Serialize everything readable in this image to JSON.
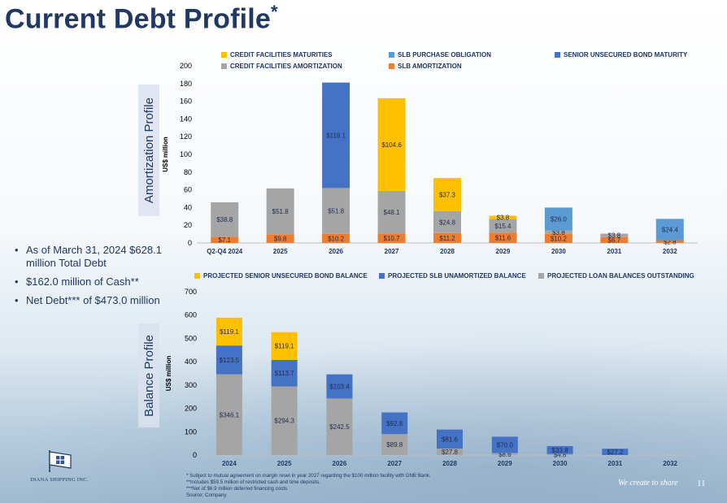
{
  "header": {
    "title": "Current Debt Profile",
    "title_mark": "*"
  },
  "bullets": [
    "As of March 31, 2024 $628.1 million Total Debt",
    "$162.0 million of Cash**",
    "Net Debt*** of $473.0 million"
  ],
  "logo": {
    "name": "DIANA SHIPPING INC."
  },
  "footer": {
    "notes": [
      "* Subject to mutual agreement on margin reset in year 2027 regarding the $100 million facility with DNB Bank.",
      "**Includes $59.5 million of restricted cash and time deposits.",
      "***Net of $6.9 million deferred financing costs",
      "Source: Company"
    ],
    "tagline": "We create to share",
    "page": "11"
  },
  "chart_data": [
    {
      "type": "bar",
      "stacked": true,
      "title": "Amortization Profile",
      "ylabel": "US$ million",
      "ylim": [
        0,
        200
      ],
      "yticks": [
        "0",
        "20",
        "40",
        "60",
        "80",
        "100",
        "120",
        "140",
        "160",
        "180",
        "200"
      ],
      "categories": [
        "Q2-Q4 2024",
        "2025",
        "2026",
        "2027",
        "2028",
        "2029",
        "2030",
        "2031",
        "2032"
      ],
      "series": [
        {
          "name": "SLB AMORTIZATION",
          "color": "#ed7d31",
          "values": [
            7.1,
            9.8,
            10.2,
            10.7,
            11.2,
            11.6,
            10.2,
            6.7,
            2.8
          ],
          "labels": [
            "$7.1",
            "$9.8",
            "$10.2",
            "$10.7",
            "$11.2",
            "$11.6",
            "$10.2",
            "$6.7",
            "$2.8"
          ]
        },
        {
          "name": "CREDIT FACILITIES AMORTIZATION",
          "color": "#a5a5a5",
          "values": [
            38.8,
            51.8,
            51.8,
            48.1,
            24.8,
            15.4,
            3.8,
            3.8,
            0
          ],
          "labels": [
            "$38.8",
            "$51.8",
            "$51.8",
            "$48.1",
            "$24.8",
            "$15.4",
            "$3.8",
            "$3.8",
            ""
          ]
        },
        {
          "name": "CREDIT FACILITIES MATURITIES",
          "color": "#ffc000",
          "values": [
            0,
            0,
            0,
            104.6,
            37.3,
            3.8,
            0,
            0,
            0
          ],
          "labels": [
            "",
            "",
            "",
            "$104.6",
            "$37.3",
            "$3.8",
            "",
            "",
            ""
          ]
        },
        {
          "name": "SLB PURCHASE OBLIGATION",
          "color": "#5b9bd5",
          "values": [
            0,
            0,
            0,
            0,
            0,
            0,
            26.0,
            0,
            24.4
          ],
          "labels": [
            "",
            "",
            "",
            "",
            "",
            "",
            "$26.0",
            "",
            "$24.4"
          ]
        },
        {
          "name": "SENIOR UNSECURED BOND MATURITY",
          "color": "#4472c4",
          "values": [
            0,
            0,
            119.1,
            0,
            0,
            0,
            0,
            0,
            0
          ],
          "labels": [
            "",
            "",
            "$119.1",
            "",
            "",
            "",
            "",
            "",
            ""
          ]
        }
      ],
      "legend": [
        "CREDIT FACILITIES MATURITIES",
        "SLB PURCHASE OBLIGATION",
        "SENIOR UNSECURED BOND MATURITY",
        "CREDIT FACILITIES AMORTIZATION",
        "SLB AMORTIZATION"
      ]
    },
    {
      "type": "bar",
      "stacked": true,
      "title": "Balance Profile",
      "ylabel": "US$ million",
      "ylim": [
        0,
        700
      ],
      "yticks": [
        "0",
        "100",
        "200",
        "300",
        "400",
        "500",
        "600",
        "700"
      ],
      "categories": [
        "2024",
        "2025",
        "2026",
        "2027",
        "2028",
        "2029",
        "2030",
        "2031",
        "2032"
      ],
      "series": [
        {
          "name": "PROJECTED LOAN BALANCES OUTSTANDING",
          "color": "#a5a5a5",
          "values": [
            346.1,
            294.3,
            242.5,
            89.8,
            27.8,
            8.6,
            4.8,
            0,
            0
          ],
          "labels": [
            "$346.1",
            "$294.3",
            "$242.5",
            "$89.8",
            "$27.8",
            "$8.6",
            "$4.8",
            "",
            ""
          ]
        },
        {
          "name": "PROJECTED SLB UNAMORTIZED BALANCE",
          "color": "#4472c4",
          "values": [
            123.5,
            113.7,
            103.4,
            92.8,
            81.6,
            70.0,
            33.8,
            27.2,
            0
          ],
          "labels": [
            "$123.5",
            "$113.7",
            "$103.4",
            "$92.8",
            "$81.6",
            "$70.0",
            "$33.8",
            "$27.2",
            ""
          ]
        },
        {
          "name": "PROJECTED SENIOR UNSECURED BOND BALANCE",
          "color": "#ffc000",
          "values": [
            119.1,
            119.1,
            0,
            0,
            0,
            0,
            0,
            0,
            0
          ],
          "labels": [
            "$119.1",
            "$119.1",
            "",
            "",
            "",
            "",
            "",
            "",
            ""
          ]
        }
      ],
      "legend": [
        "PROJECTED SENIOR UNSECURED BOND BALANCE",
        "PROJECTED SLB UNAMORTIZED BALANCE",
        "PROJECTED LOAN BALANCES OUTSTANDING"
      ]
    }
  ]
}
